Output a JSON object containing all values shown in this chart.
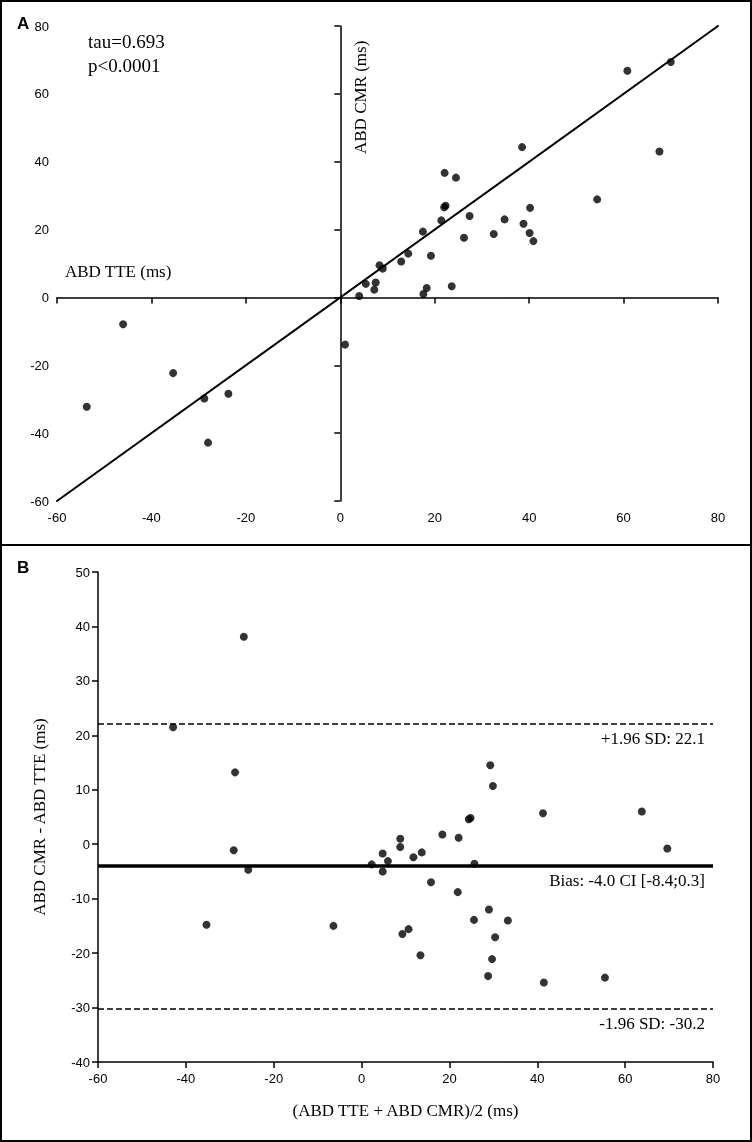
{
  "chart_data": [
    {
      "type": "scatter",
      "title": "A",
      "xlabel": "ABD TTE (ms)",
      "ylabel": "ABD CMR (ms)",
      "annotations": [
        "tau=0.693",
        "p<0.0001"
      ],
      "xlim": [
        -60,
        80
      ],
      "xticks": [
        -60,
        -40,
        -20,
        0,
        20,
        40,
        60,
        80
      ],
      "ylim": [
        -60,
        80
      ],
      "yticks": [
        -60,
        -40,
        -20,
        0,
        20,
        40,
        60,
        80
      ],
      "marker": "circle",
      "series": [
        {
          "color": "#000000",
          "x": [
            60.8,
            70.0,
            67.6,
            54.4,
            38.5,
            22.1,
            24.5,
            22.3,
            22.0,
            21.4,
            17.5,
            27.4,
            26.2,
            32.5,
            34.8,
            38.8,
            40.2,
            40.1,
            40.9,
            8.3,
            9.0,
            12.9,
            14.4,
            19.2,
            5.4,
            7.5,
            7.2,
            4.0,
            17.6,
            18.3,
            23.6,
            1.0,
            -46.0,
            -35.4,
            -53.7,
            -28.8,
            -23.7,
            -28.0
          ],
          "values": [
            66.8,
            69.4,
            43.0,
            28.9,
            44.3,
            36.7,
            35.3,
            27.0,
            26.6,
            22.7,
            19.4,
            24.0,
            17.6,
            18.7,
            23.0,
            21.7,
            26.4,
            19.0,
            16.6,
            9.5,
            8.5,
            10.6,
            12.9,
            12.3,
            4.0,
            4.4,
            2.3,
            0.4,
            1.0,
            2.8,
            3.3,
            -13.9,
            -7.9,
            -22.3,
            -32.2,
            -29.8,
            -28.4,
            -42.8
          ]
        },
        {
          "type": "line",
          "color": "#000000",
          "line_style": "solid",
          "marker": "none",
          "x": [
            -60,
            80
          ],
          "values": [
            -60,
            80
          ]
        }
      ]
    },
    {
      "type": "scatter",
      "title": "B",
      "xlabel": "(ABD TTE + ABD CMR)/2 (ms)",
      "ylabel": "ABD CMR - ABD TTE (ms)",
      "xlim": [
        -60,
        80
      ],
      "xticks": [
        -60,
        -40,
        -20,
        0,
        20,
        40,
        60,
        80
      ],
      "ylim": [
        -40,
        50
      ],
      "yticks": [
        -40,
        -30,
        -20,
        -10,
        0,
        10,
        20,
        30,
        40,
        50
      ],
      "marker": "circle",
      "series": [
        {
          "color": "#000000",
          "x": [
            -26.8,
            -42.9,
            -28.8,
            -29.1,
            -25.8,
            -35.3,
            -6.4,
            2.3,
            4.8,
            4.8,
            6.0,
            8.8,
            8.8,
            11.8,
            13.7,
            9.3,
            10.7,
            13.4,
            15.8,
            18.4,
            22.1,
            21.9,
            24.4,
            24.8,
            25.7,
            25.6,
            29.3,
            29.9,
            29.0,
            30.4,
            29.7,
            33.3,
            41.3,
            63.8,
            69.6,
            28.8,
            41.5,
            55.4
          ],
          "values": [
            38.1,
            21.5,
            13.2,
            -1.1,
            -4.7,
            -14.8,
            -15.0,
            -3.7,
            -1.7,
            -5.0,
            -3.1,
            1.0,
            -0.5,
            -2.4,
            -1.5,
            -16.5,
            -15.6,
            -20.4,
            -7.0,
            1.8,
            1.2,
            -8.8,
            4.6,
            4.8,
            -3.6,
            -13.9,
            14.5,
            10.7,
            -12.0,
            -17.1,
            -21.1,
            -14.0,
            5.7,
            6.0,
            -0.8,
            -24.2,
            -25.4,
            -24.5
          ]
        }
      ],
      "ref_lines": [
        {
          "axis": "y",
          "value": 22.1,
          "label": "+1.96 SD: 22.1",
          "color": "#000000",
          "line_style": "dashed"
        },
        {
          "axis": "y",
          "value": -4.0,
          "label": "Bias: -4.0 CI [-8.4;0.3]",
          "color": "#000000",
          "line_style": "solid"
        },
        {
          "axis": "y",
          "value": -30.2,
          "label": "-1.96 SD: -30.2",
          "color": "#000000",
          "line_style": "dashed"
        }
      ]
    }
  ]
}
